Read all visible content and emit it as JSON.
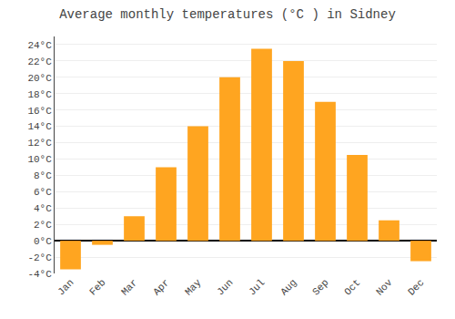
{
  "chart_data": {
    "type": "bar",
    "title": "Average monthly temperatures (°C ) in Sidney",
    "categories": [
      "Jan",
      "Feb",
      "Mar",
      "Apr",
      "May",
      "Jun",
      "Jul",
      "Aug",
      "Sep",
      "Oct",
      "Nov",
      "Dec"
    ],
    "values": [
      -3.5,
      -0.5,
      3.0,
      9.0,
      14.0,
      20.0,
      23.5,
      22.0,
      17.0,
      10.5,
      2.5,
      -2.5
    ],
    "color": "#FFA520",
    "ylim": [
      -4,
      25
    ],
    "yticks": [
      {
        "value": -4,
        "label": "-4°C"
      },
      {
        "value": -2,
        "label": "-2°C"
      },
      {
        "value": 0,
        "label": "0°C"
      },
      {
        "value": 2,
        "label": "2°C"
      },
      {
        "value": 4,
        "label": "4°C"
      },
      {
        "value": 6,
        "label": "6°C"
      },
      {
        "value": 8,
        "label": "8°C"
      },
      {
        "value": 10,
        "label": "10°C"
      },
      {
        "value": 12,
        "label": "12°C"
      },
      {
        "value": 14,
        "label": "14°C"
      },
      {
        "value": 16,
        "label": "16°C"
      },
      {
        "value": 18,
        "label": "18°C"
      },
      {
        "value": 20,
        "label": "20°C"
      },
      {
        "value": 22,
        "label": "22°C"
      },
      {
        "value": 24,
        "label": "24°C"
      }
    ],
    "grid": true
  }
}
